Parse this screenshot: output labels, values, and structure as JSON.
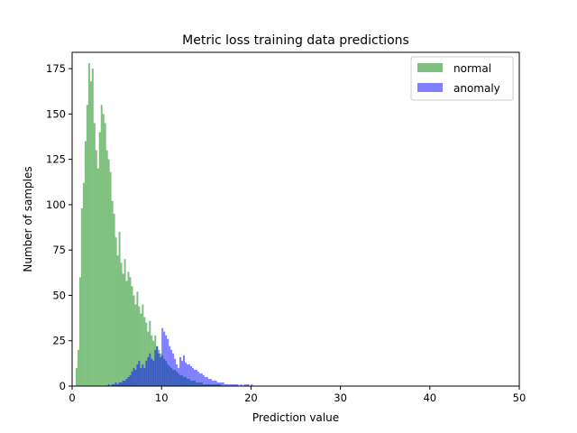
{
  "chart_data": {
    "type": "histogram",
    "title": "Metric loss training data predictions",
    "xlabel": "Prediction value",
    "ylabel": "Number of samples",
    "xlim": [
      0,
      50
    ],
    "ylim": [
      0,
      184
    ],
    "xticks": [
      "0",
      "10",
      "20",
      "30",
      "40",
      "50"
    ],
    "yticks": [
      "0",
      "25",
      "50",
      "75",
      "100",
      "125",
      "150",
      "175"
    ],
    "grid": false,
    "legend_position": "upper right",
    "bin_width": 0.2,
    "series": [
      {
        "name": "normal",
        "color": "#008000",
        "opacity": 0.5,
        "bin_start": 0.4,
        "counts": [
          10,
          20,
          60,
          98,
          112,
          135,
          155,
          178,
          168,
          175,
          145,
          130,
          120,
          140,
          155,
          150,
          145,
          130,
          125,
          118,
          102,
          95,
          82,
          72,
          85,
          68,
          62,
          70,
          58,
          63,
          60,
          55,
          50,
          45,
          52,
          44,
          40,
          45,
          38,
          35,
          30,
          36,
          28,
          25,
          28,
          22,
          20,
          18,
          17,
          15,
          14,
          12,
          11,
          10,
          9,
          9,
          8,
          7,
          6,
          6,
          5,
          5,
          4,
          4,
          3,
          3,
          3,
          2,
          2,
          2,
          2,
          1,
          1,
          1,
          1,
          1,
          1,
          1,
          1,
          1,
          1,
          0,
          0,
          0,
          0,
          0,
          0,
          0,
          0,
          0,
          0,
          0,
          0,
          0,
          0,
          1
        ]
      },
      {
        "name": "anomaly",
        "color": "#0000FF",
        "opacity": 0.5,
        "bin_start": 4.0,
        "counts": [
          1,
          0,
          1,
          1,
          2,
          1,
          2,
          2,
          3,
          3,
          4,
          5,
          6,
          8,
          10,
          9,
          12,
          14,
          10,
          12,
          10,
          14,
          16,
          18,
          15,
          14,
          20,
          22,
          18,
          16,
          32,
          30,
          28,
          26,
          22,
          20,
          18,
          15,
          12,
          10,
          16,
          14,
          17,
          13,
          12,
          12,
          11,
          10,
          9,
          9,
          8,
          7,
          7,
          6,
          5,
          5,
          4,
          4,
          3,
          3,
          3,
          2,
          2,
          2,
          2,
          1,
          1,
          1,
          1,
          1,
          1,
          1,
          1,
          0,
          1,
          0,
          1,
          0,
          1,
          0,
          1
        ]
      }
    ]
  }
}
